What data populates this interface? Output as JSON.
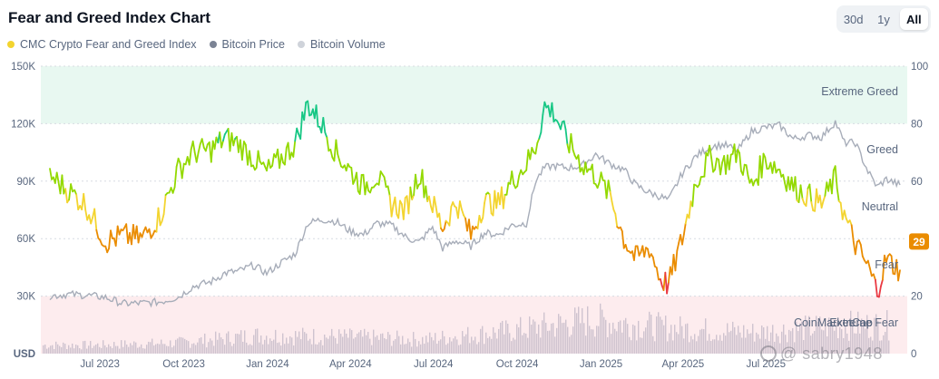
{
  "header": {
    "title": "Fear and Greed Index Chart"
  },
  "range_tabs": [
    {
      "label": "30d",
      "active": false
    },
    {
      "label": "1y",
      "active": false
    },
    {
      "label": "All",
      "active": true
    }
  ],
  "legend": [
    {
      "label": "CMC Crypto Fear and Greed Index",
      "color": "#f3d42f"
    },
    {
      "label": "Bitcoin Price",
      "color": "#7b8394"
    },
    {
      "label": "Bitcoin Volume",
      "color": "#cfd3da"
    }
  ],
  "colors": {
    "extreme_fear": "#ea3943",
    "fear": "#ea8c00",
    "neutral": "#f3d42f",
    "greed": "#93d900",
    "extreme_greed": "#16c784",
    "price_line": "#a7adb9",
    "volume": "#cfc3cf",
    "greed_band": "#e8f8f1",
    "fear_band": "#fdecee"
  },
  "watermark": {
    "text": "@ sabry1948",
    "logo_text": "CoinMarketCap"
  },
  "chart_data": {
    "type": "line",
    "x_ticks": [
      "Jul 2023",
      "Oct 2023",
      "Jan 2024",
      "Apr 2024",
      "Jul 2024",
      "Oct 2024",
      "Jan 2025",
      "Apr 2025",
      "Jul 2025"
    ],
    "y_left": {
      "ticks": [
        "150K",
        "120K",
        "90K",
        "60K",
        "30K"
      ],
      "unit_label": "USD",
      "range": [
        0,
        150000
      ]
    },
    "y_right": {
      "ticks": [
        "100",
        "80",
        "60",
        "40",
        "20",
        "0"
      ],
      "range": [
        0,
        100
      ]
    },
    "zones": [
      "Extreme Greed",
      "Greed",
      "Neutral",
      "Fear",
      "Extreme Fear"
    ],
    "current_value": 29,
    "series": [
      {
        "name": "CMC Crypto Fear and Greed Index",
        "dates": [
          "2023-06-01",
          "2023-06-20",
          "2023-07-10",
          "2023-08-01",
          "2023-08-20",
          "2023-09-10",
          "2023-09-30",
          "2023-10-20",
          "2023-11-05",
          "2023-11-25",
          "2023-12-10",
          "2023-12-25",
          "2024-01-10",
          "2024-01-25",
          "2024-02-10",
          "2024-02-25",
          "2024-03-10",
          "2024-03-25",
          "2024-04-10",
          "2024-04-25",
          "2024-05-10",
          "2024-05-25",
          "2024-06-10",
          "2024-06-25",
          "2024-07-10",
          "2024-07-25",
          "2024-08-05",
          "2024-08-20",
          "2024-09-05",
          "2024-09-20",
          "2024-10-05",
          "2024-10-20",
          "2024-11-05",
          "2024-11-15",
          "2024-11-25",
          "2024-12-05",
          "2024-12-20",
          "2025-01-05",
          "2025-01-20",
          "2025-02-05",
          "2025-02-20",
          "2025-03-05",
          "2025-03-20",
          "2025-04-01",
          "2025-04-10",
          "2025-04-25",
          "2025-05-10",
          "2025-05-25",
          "2025-06-10",
          "2025-06-25",
          "2025-07-10",
          "2025-07-25",
          "2025-08-10",
          "2025-08-25",
          "2025-09-10",
          "2025-09-25",
          "2025-10-10",
          "2025-10-20",
          "2025-11-01",
          "2025-11-15",
          "2025-11-25",
          "2025-12-05",
          "2025-12-20"
        ],
        "values": [
          62,
          57,
          52,
          39,
          41,
          40,
          48,
          64,
          70,
          71,
          75,
          73,
          68,
          63,
          68,
          73,
          87,
          80,
          70,
          64,
          58,
          62,
          52,
          50,
          63,
          52,
          44,
          53,
          41,
          53,
          52,
          60,
          66,
          72,
          86,
          84,
          74,
          66,
          62,
          55,
          40,
          33,
          37,
          26,
          24,
          40,
          60,
          68,
          66,
          70,
          58,
          68,
          64,
          58,
          55,
          52,
          61,
          48,
          38,
          30,
          22,
          33,
          29
        ]
      },
      {
        "name": "Bitcoin Price",
        "dates": [
          "2023-06-01",
          "2023-06-20",
          "2023-07-10",
          "2023-08-01",
          "2023-08-20",
          "2023-09-10",
          "2023-09-30",
          "2023-10-20",
          "2023-11-05",
          "2023-11-25",
          "2023-12-10",
          "2023-12-25",
          "2024-01-10",
          "2024-01-25",
          "2024-02-10",
          "2024-02-25",
          "2024-03-10",
          "2024-03-25",
          "2024-04-10",
          "2024-04-25",
          "2024-05-10",
          "2024-05-25",
          "2024-06-10",
          "2024-06-25",
          "2024-07-10",
          "2024-07-25",
          "2024-08-05",
          "2024-08-20",
          "2024-09-05",
          "2024-09-20",
          "2024-10-05",
          "2024-10-20",
          "2024-11-05",
          "2024-11-15",
          "2024-11-25",
          "2024-12-05",
          "2024-12-20",
          "2025-01-05",
          "2025-01-20",
          "2025-02-05",
          "2025-02-20",
          "2025-03-05",
          "2025-03-20",
          "2025-04-01",
          "2025-04-10",
          "2025-04-25",
          "2025-05-10",
          "2025-05-25",
          "2025-06-10",
          "2025-06-25",
          "2025-07-10",
          "2025-07-25",
          "2025-08-10",
          "2025-08-25",
          "2025-09-10",
          "2025-09-25",
          "2025-10-10",
          "2025-10-20",
          "2025-11-01",
          "2025-11-15",
          "2025-11-25",
          "2025-12-05",
          "2025-12-20"
        ],
        "values": [
          30000,
          31000,
          30500,
          29300,
          26100,
          26300,
          27000,
          29500,
          35000,
          37500,
          42000,
          43000,
          46000,
          42000,
          47500,
          52000,
          68000,
          70000,
          69000,
          64000,
          62000,
          68000,
          67000,
          61000,
          58000,
          66000,
          55000,
          59000,
          56000,
          63000,
          62000,
          67000,
          68000,
          90000,
          97000,
          98000,
          97000,
          98000,
          104000,
          99000,
          96000,
          88000,
          84000,
          82000,
          80000,
          94000,
          103000,
          108000,
          109000,
          106000,
          116000,
          118000,
          119000,
          112000,
          114000,
          113000,
          121000,
          110000,
          110000,
          95000,
          87000,
          91000,
          88000
        ]
      },
      {
        "name": "Bitcoin Volume",
        "dates": [
          "2023-07",
          "2023-10",
          "2024-01",
          "2024-04",
          "2024-07",
          "2024-10",
          "2025-01",
          "2025-04",
          "2025-07",
          "2025-10"
        ],
        "values": [
          12,
          15,
          26,
          24,
          20,
          32,
          48,
          36,
          30,
          40
        ]
      }
    ]
  }
}
